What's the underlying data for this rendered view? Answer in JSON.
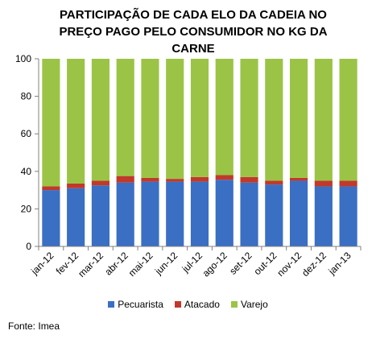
{
  "chart_data": {
    "type": "bar",
    "stacked": true,
    "title": "PARTICIPAÇÃO DE CADA ELO DA CADEIA NO PREÇO PAGO PELO CONSUMIDOR NO KG DA CARNE",
    "title_lines": [
      "PARTICIPAÇÃO DE CADA ELO DA CADEIA NO",
      "PREÇO PAGO PELO CONSUMIDOR NO KG DA",
      "CARNE"
    ],
    "categories": [
      "jan-12",
      "fev-12",
      "mar-12",
      "abr-12",
      "mai-12",
      "jun-12",
      "jul-12",
      "ago-12",
      "set-12",
      "out-12",
      "nov-12",
      "dez-12",
      "jan-13"
    ],
    "series": [
      {
        "name": "Pecuarista",
        "color": "#3a6fc4",
        "values": [
          30,
          31,
          32.5,
          34,
          34.5,
          34.5,
          34.5,
          35.5,
          34,
          33,
          35,
          32,
          32
        ]
      },
      {
        "name": "Atacado",
        "color": "#c0392b",
        "values": [
          2,
          2.5,
          2.5,
          3.5,
          2,
          1.5,
          2.5,
          2.5,
          3,
          2,
          1.5,
          3,
          3
        ]
      },
      {
        "name": "Varejo",
        "color": "#9bc446",
        "values": [
          68,
          66.5,
          65,
          62.5,
          63.5,
          64,
          63,
          62,
          63,
          65,
          63.5,
          65,
          65
        ]
      }
    ],
    "ylim": [
      0,
      100
    ],
    "yticks": [
      0,
      20,
      40,
      60,
      80,
      100
    ],
    "legend": "bottom",
    "grid": false
  },
  "source": "Fonte: Imea"
}
